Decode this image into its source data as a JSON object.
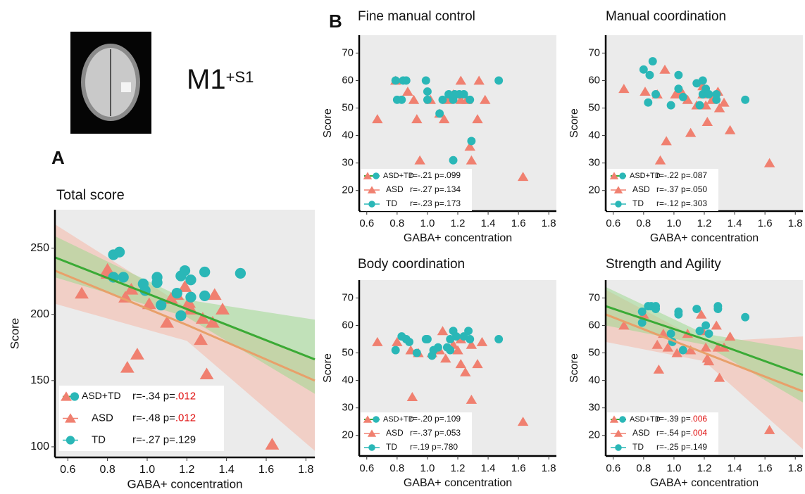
{
  "figure": {
    "panel_a": "A",
    "panel_b": "B",
    "roi": "M1",
    "roi_suffix": "+S1"
  },
  "chart_data": [
    {
      "type": "scatter",
      "title": "Total score",
      "x_label": "GABA+ concentration",
      "y_label": "Score",
      "xlim": [
        0.535,
        1.845
      ],
      "ylim": [
        92,
        279
      ],
      "xticks": [
        0.6,
        0.8,
        {
          "value": 1,
          "label": "1.0"
        },
        1.2,
        1.4,
        1.6,
        1.8
      ],
      "yticks": [
        100,
        150,
        200,
        250
      ],
      "combined": {
        "name": "ASD+TD",
        "stat": "r=-.34 p=",
        "p": ".012",
        "significant": true,
        "color": "#3aaa35"
      },
      "series": [
        {
          "name": "ASD",
          "marker": "triangle",
          "color": "#f08070",
          "stat": "r=-.48 p=",
          "p": ".012",
          "significant": true,
          "x": [
            0.67,
            0.8,
            0.8,
            0.89,
            0.92,
            0.9,
            0.95,
            1.01,
            1.1,
            1.12,
            1.15,
            1.19,
            1.21,
            1.22,
            1.27,
            1.28,
            1.3,
            1.33,
            1.34,
            1.38,
            1.63
          ],
          "values": [
            216,
            234,
            231,
            213,
            219,
            160,
            170,
            208,
            194,
            212,
            215,
            221,
            209,
            204,
            181,
            197,
            155,
            194,
            215,
            204,
            102
          ]
        },
        {
          "name": "TD",
          "marker": "circle",
          "color": "#2ab7b7",
          "stat": "r=-.27 p=.129",
          "p": "",
          "significant": false,
          "x": [
            0.83,
            0.86,
            0.83,
            0.88,
            0.98,
            0.99,
            1.05,
            1.05,
            1.07,
            1.17,
            1.19,
            1.22,
            1.17,
            1.22,
            1.29,
            1.29,
            1.47,
            1.15
          ],
          "values": [
            245,
            247,
            228,
            228,
            223,
            218,
            228,
            224,
            207,
            229,
            233,
            226,
            199,
            213,
            232,
            214,
            231,
            216
          ]
        }
      ],
      "fits": [
        {
          "color": "#e8a06a",
          "band_color": "#f6b8a8",
          "x": [
            0.535,
            1.2,
            1.845
          ],
          "values": [
            233,
            192,
            150
          ],
          "lower": [
            208,
            180,
            97
          ],
          "upper": [
            268,
            205,
            167
          ]
        },
        {
          "color": "#3aaa35",
          "band_color": "#9fd890",
          "x": [
            0.535,
            1.2,
            1.845
          ],
          "values": [
            243,
            204,
            166
          ],
          "lower": [
            228,
            198,
            140
          ],
          "upper": [
            259,
            211,
            196
          ]
        }
      ]
    },
    {
      "type": "scatter",
      "title": "Fine manual control",
      "x_label": "GABA+ concentration",
      "y_label": "Score",
      "xlim": [
        0.55,
        1.85
      ],
      "ylim": [
        12.5,
        76.5
      ],
      "xticks": [
        0.6,
        0.8,
        {
          "value": 1,
          "label": "1.0"
        },
        1.2,
        1.4,
        1.6,
        1.8
      ],
      "yticks": [
        20,
        30,
        40,
        50,
        60,
        70
      ],
      "combined": {
        "name": "ASD+TD",
        "stat": "r=-.21 p=.099",
        "p": "",
        "significant": false,
        "color": "#3aaa35"
      },
      "series": [
        {
          "name": "ASD",
          "marker": "triangle",
          "color": "#f08070",
          "stat": "r=-.27 p=.134",
          "p": "",
          "significant": false,
          "x": [
            0.67,
            0.79,
            0.87,
            0.91,
            0.93,
            0.95,
            1.02,
            1.08,
            1.11,
            1.13,
            1.17,
            1.22,
            1.22,
            1.26,
            1.28,
            1.29,
            1.33,
            1.34,
            1.38,
            1.63
          ],
          "values": [
            46,
            60,
            56,
            53,
            46,
            31,
            53,
            48,
            46,
            53,
            55,
            53,
            60,
            53,
            36,
            31,
            46,
            60,
            53,
            25
          ]
        },
        {
          "name": "TD",
          "marker": "circle",
          "color": "#2ab7b7",
          "stat": "r=-.23 p=.173",
          "p": "",
          "significant": false,
          "x": [
            0.79,
            0.8,
            0.83,
            0.84,
            0.86,
            0.99,
            1.0,
            1.0,
            1.08,
            1.1,
            1.14,
            1.17,
            1.17,
            1.18,
            1.21,
            1.24,
            1.28,
            1.29,
            1.47
          ],
          "values": [
            60,
            53,
            53,
            60,
            60,
            60,
            56,
            53,
            48,
            53,
            55,
            53,
            31,
            55,
            55,
            55,
            53,
            38,
            60
          ]
        }
      ],
      "fits": []
    },
    {
      "type": "scatter",
      "title": "Manual coordination",
      "x_label": "GABA+ concentration",
      "y_label": "Score",
      "xlim": [
        0.55,
        1.85
      ],
      "ylim": [
        12.5,
        76.5
      ],
      "xticks": [
        0.6,
        0.8,
        {
          "value": 1,
          "label": "1.0"
        },
        1.2,
        1.4,
        1.6,
        1.8
      ],
      "yticks": [
        20,
        30,
        40,
        50,
        60,
        70
      ],
      "combined": {
        "name": "ASD+TD",
        "stat": "r=-.22 p=.087",
        "p": "",
        "significant": false,
        "color": "#3aaa35"
      },
      "series": [
        {
          "name": "ASD",
          "marker": "triangle",
          "color": "#f08070",
          "stat": "r=-.37 p=.050",
          "p": "",
          "significant": false,
          "x": [
            0.67,
            0.81,
            0.89,
            0.91,
            0.94,
            0.95,
            1.01,
            1.05,
            1.09,
            1.11,
            1.15,
            1.19,
            1.21,
            1.22,
            1.25,
            1.29,
            1.3,
            1.33,
            1.37,
            1.63,
            1.19
          ],
          "values": [
            57,
            56,
            55,
            31,
            64,
            38,
            55,
            56,
            53,
            41,
            51,
            55,
            51,
            45,
            53,
            56,
            50,
            52,
            42,
            30,
            58
          ]
        },
        {
          "name": "TD",
          "marker": "circle",
          "color": "#2ab7b7",
          "stat": "r=-.12 p=.303",
          "p": "",
          "significant": false,
          "x": [
            0.8,
            0.84,
            0.86,
            0.83,
            0.88,
            0.98,
            1.03,
            1.03,
            1.06,
            1.15,
            1.17,
            1.19,
            1.19,
            1.21,
            1.28,
            1.28,
            1.47,
            1.23
          ],
          "values": [
            64,
            62,
            67,
            52,
            55,
            51,
            57,
            62,
            54,
            59,
            51,
            60,
            55,
            57,
            55,
            53,
            53,
            55
          ]
        }
      ],
      "fits": []
    },
    {
      "type": "scatter",
      "title": "Body coordination",
      "x_label": "GABA+ concentration",
      "y_label": "Score",
      "xlim": [
        0.55,
        1.85
      ],
      "ylim": [
        12.5,
        76.5
      ],
      "xticks": [
        0.6,
        0.8,
        {
          "value": 1,
          "label": "1.0"
        },
        1.2,
        1.4,
        1.6,
        1.8
      ],
      "yticks": [
        20,
        30,
        40,
        50,
        60,
        70
      ],
      "combined": {
        "name": "ASD+TD",
        "stat": "r=-.20 p=.109",
        "p": "",
        "significant": false,
        "color": "#3aaa35"
      },
      "series": [
        {
          "name": "ASD",
          "marker": "triangle",
          "color": "#f08070",
          "stat": "r=-.37 p=.053",
          "p": "",
          "significant": false,
          "x": [
            0.67,
            0.8,
            0.89,
            0.9,
            0.94,
            1.03,
            1.08,
            1.1,
            1.12,
            1.17,
            1.2,
            1.22,
            1.25,
            1.29,
            1.29,
            1.33,
            1.36,
            1.63,
            1.22
          ],
          "values": [
            54,
            54,
            51,
            34,
            50,
            50,
            51,
            58,
            48,
            53,
            51,
            46,
            43,
            53,
            33,
            46,
            54,
            25,
            55
          ]
        },
        {
          "name": "TD",
          "marker": "circle",
          "color": "#2ab7b7",
          "stat": "r=.19 p=.780",
          "p": "",
          "significant": false,
          "x": [
            0.79,
            0.83,
            0.86,
            0.88,
            0.93,
            0.99,
            1.0,
            1.03,
            1.07,
            1.13,
            1.15,
            1.17,
            1.19,
            1.24,
            1.27,
            1.28,
            1.47,
            1.15,
            1.04
          ],
          "values": [
            51,
            56,
            55,
            54,
            50,
            55,
            55,
            49,
            52,
            52,
            55,
            58,
            56,
            56,
            58,
            55,
            55,
            51,
            51
          ]
        }
      ],
      "fits": []
    },
    {
      "type": "scatter",
      "title": "Strength and Agility",
      "x_label": "GABA+ concentration",
      "y_label": "Score",
      "xlim": [
        0.55,
        1.85
      ],
      "ylim": [
        12.5,
        76.5
      ],
      "xticks": [
        0.6,
        0.8,
        {
          "value": 1,
          "label": "1.0"
        },
        1.2,
        1.4,
        1.6,
        1.8
      ],
      "yticks": [
        20,
        30,
        40,
        50,
        60,
        70
      ],
      "combined": {
        "name": "ASD+TD",
        "stat": "r=-.39 p=",
        "p": ".006",
        "significant": true,
        "color": "#3aaa35"
      },
      "series": [
        {
          "name": "ASD",
          "marker": "triangle",
          "color": "#f08070",
          "stat": "r=-.54 p=",
          "p": ".004",
          "significant": true,
          "x": [
            0.67,
            0.8,
            0.89,
            0.9,
            0.93,
            0.96,
            1.02,
            1.09,
            1.11,
            1.18,
            1.19,
            1.21,
            1.22,
            1.23,
            1.28,
            1.29,
            1.3,
            1.33,
            1.37,
            1.63
          ],
          "values": [
            60,
            64,
            53,
            44,
            57,
            52,
            50,
            57,
            51,
            64,
            58,
            52,
            48,
            47,
            60,
            52,
            41,
            52,
            56,
            22
          ]
        },
        {
          "name": "TD",
          "marker": "circle",
          "color": "#2ab7b7",
          "stat": "r=-.25 p=.149",
          "p": "",
          "significant": false,
          "x": [
            0.79,
            0.79,
            0.83,
            0.85,
            0.88,
            0.88,
            0.98,
            0.99,
            1.03,
            1.03,
            1.06,
            1.15,
            1.17,
            1.21,
            1.23,
            1.29,
            1.29,
            1.47
          ],
          "values": [
            65,
            61,
            67,
            67,
            67,
            66,
            57,
            54,
            65,
            64,
            51,
            66,
            58,
            60,
            57,
            67,
            66,
            63
          ]
        }
      ],
      "fits": [
        {
          "color": "#e8a06a",
          "band_color": "#f6b8a8",
          "x": [
            0.55,
            1.2,
            1.85
          ],
          "values": [
            64,
            50,
            36
          ],
          "lower": [
            54,
            47,
            15
          ],
          "upper": [
            73,
            54,
            56
          ]
        },
        {
          "color": "#3aaa35",
          "band_color": "#9fd890",
          "x": [
            0.55,
            1.2,
            1.85
          ],
          "values": [
            67,
            55,
            42
          ],
          "lower": [
            60,
            53,
            32
          ],
          "upper": [
            74,
            57,
            51
          ]
        }
      ]
    }
  ]
}
